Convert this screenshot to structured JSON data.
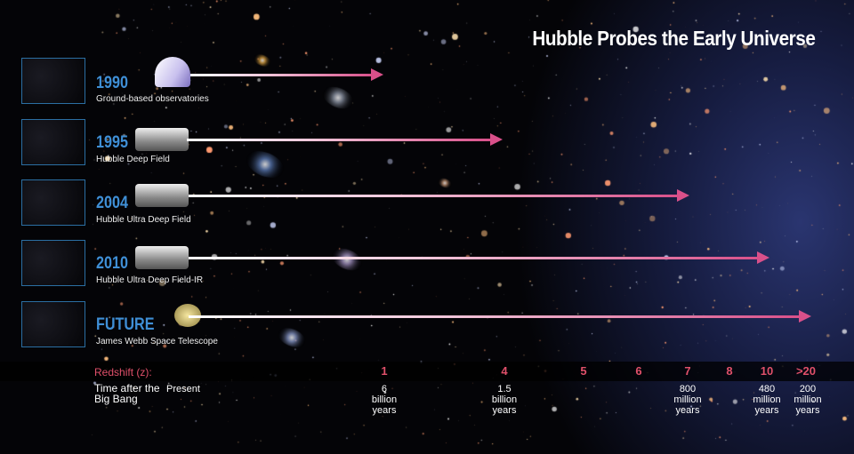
{
  "title": "Hubble Probes the Early Universe",
  "colors": {
    "year": "#3f8fd6",
    "redshift": "#e0506a",
    "arrow": "#d9508a"
  },
  "rows": [
    {
      "year": "1990",
      "desc": "Ground-based observatories",
      "icon": "observatory-dome-icon"
    },
    {
      "year": "1995",
      "desc": "Hubble Deep Field",
      "icon": "hubble-telescope-icon"
    },
    {
      "year": "2004",
      "desc": "Hubble Ultra Deep Field",
      "icon": "hubble-telescope-icon"
    },
    {
      "year": "2010",
      "desc": "Hubble Ultra Deep Field-IR",
      "icon": "hubble-telescope-icon"
    },
    {
      "year": "FUTURE",
      "desc": "James Webb Space Telescope",
      "icon": "webb-telescope-icon"
    }
  ],
  "redshift": {
    "label": "Redshift (z):",
    "values": [
      "1",
      "4",
      "5",
      "6",
      "7",
      "8",
      "10",
      ">20"
    ]
  },
  "time": {
    "label": "Time after the Big Bang",
    "present": "Present",
    "values": [
      {
        "z": "1",
        "text": "6\nbillion\nyears"
      },
      {
        "z": "4",
        "text": "1.5\nbillion\nyears"
      },
      {
        "z": "7",
        "text": "800\nmillion\nyears"
      },
      {
        "z": "10",
        "text": "480\nmillion\nyears"
      },
      {
        "z": ">20",
        "text": "200\nmillion\nyears"
      }
    ]
  }
}
